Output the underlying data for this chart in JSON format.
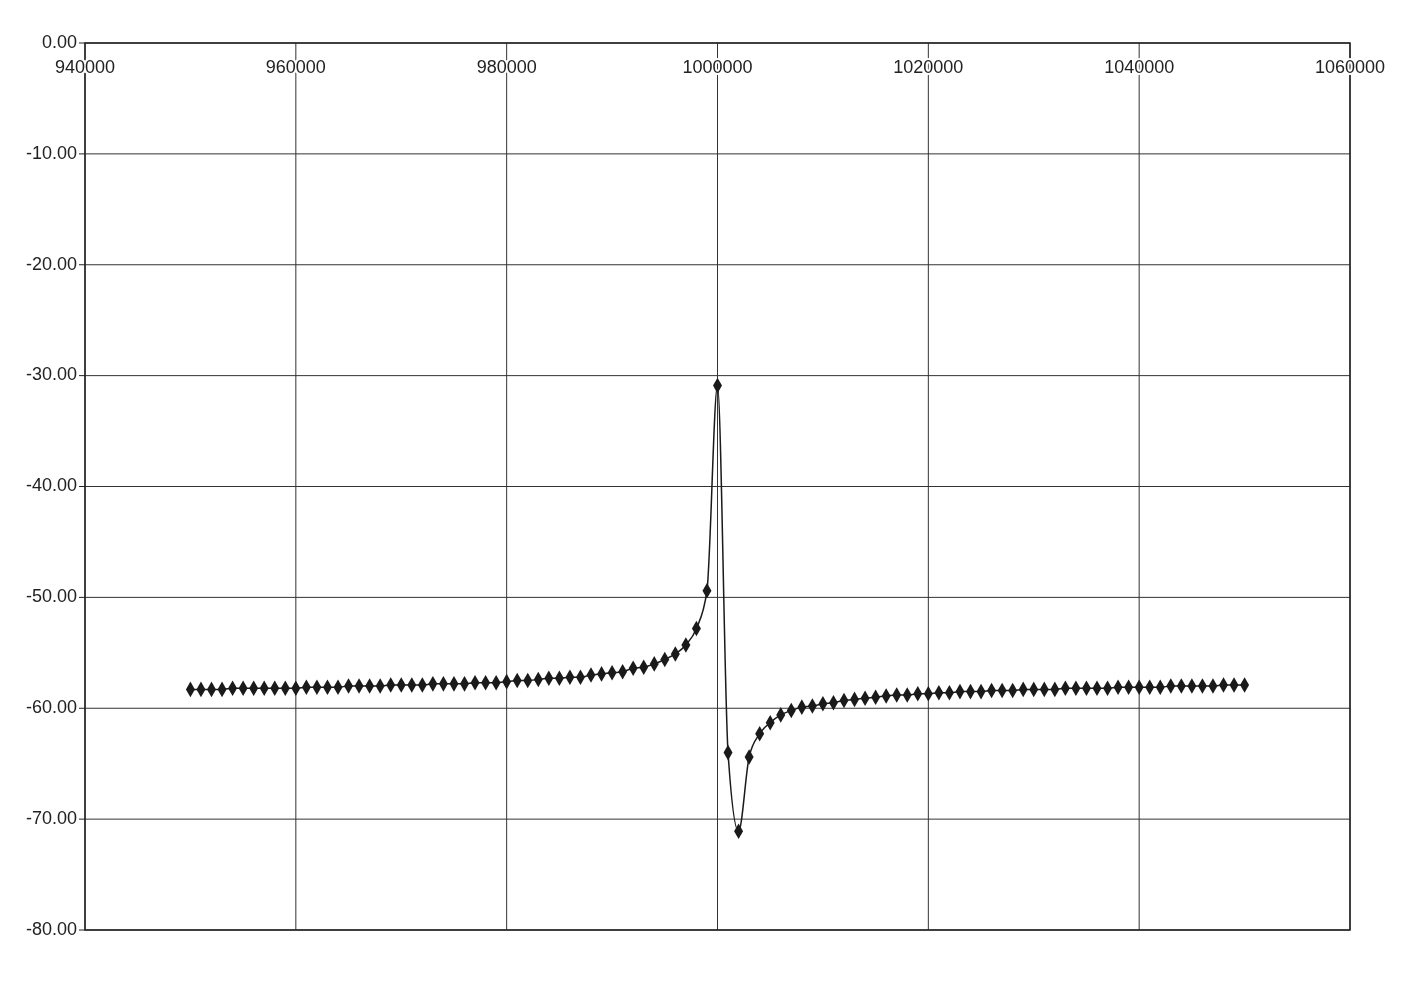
{
  "chart_data": {
    "type": "line",
    "x": [
      950000,
      951000,
      952000,
      953000,
      954000,
      955000,
      956000,
      957000,
      958000,
      959000,
      960000,
      961000,
      962000,
      963000,
      964000,
      965000,
      966000,
      967000,
      968000,
      969000,
      970000,
      971000,
      972000,
      973000,
      974000,
      975000,
      976000,
      977000,
      978000,
      979000,
      980000,
      981000,
      982000,
      983000,
      984000,
      985000,
      986000,
      987000,
      988000,
      989000,
      990000,
      991000,
      992000,
      993000,
      994000,
      995000,
      996000,
      997000,
      998000,
      999000,
      1000000,
      1001000,
      1002000,
      1003000,
      1004000,
      1005000,
      1006000,
      1007000,
      1008000,
      1009000,
      1010000,
      1011000,
      1012000,
      1013000,
      1014000,
      1015000,
      1016000,
      1017000,
      1018000,
      1019000,
      1020000,
      1021000,
      1022000,
      1023000,
      1024000,
      1025000,
      1026000,
      1027000,
      1028000,
      1029000,
      1030000,
      1031000,
      1032000,
      1033000,
      1034000,
      1035000,
      1036000,
      1037000,
      1038000,
      1039000,
      1040000,
      1041000,
      1042000,
      1043000,
      1044000,
      1045000,
      1046000,
      1047000,
      1048000,
      1049000,
      1050000
    ],
    "series": [
      {
        "color": "#1a1a1a",
        "values": [
          -58.3,
          -58.3,
          -58.3,
          -58.3,
          -58.2,
          -58.2,
          -58.2,
          -58.2,
          -58.2,
          -58.2,
          -58.2,
          -58.1,
          -58.1,
          -58.1,
          -58.1,
          -58.0,
          -58.0,
          -58.0,
          -58.0,
          -57.9,
          -57.9,
          -57.9,
          -57.9,
          -57.8,
          -57.8,
          -57.8,
          -57.8,
          -57.7,
          -57.7,
          -57.7,
          -57.6,
          -57.5,
          -57.5,
          -57.4,
          -57.3,
          -57.3,
          -57.2,
          -57.2,
          -57.0,
          -56.9,
          -56.8,
          -56.7,
          -56.4,
          -56.3,
          -56.0,
          -55.6,
          -55.1,
          -54.3,
          -52.8,
          -49.4,
          -30.9,
          -64.0,
          -71.1,
          -64.4,
          -62.3,
          -61.3,
          -60.6,
          -60.2,
          -59.9,
          -59.8,
          -59.6,
          -59.5,
          -59.3,
          -59.2,
          -59.1,
          -59.0,
          -58.9,
          -58.8,
          -58.8,
          -58.7,
          -58.7,
          -58.6,
          -58.6,
          -58.5,
          -58.5,
          -58.5,
          -58.4,
          -58.4,
          -58.4,
          -58.3,
          -58.3,
          -58.3,
          -58.3,
          -58.2,
          -58.2,
          -58.2,
          -58.2,
          -58.2,
          -58.1,
          -58.1,
          -58.1,
          -58.1,
          -58.1,
          -58.0,
          -58.0,
          -58.0,
          -58.0,
          -58.0,
          -57.9,
          -57.9,
          -57.9
        ]
      }
    ],
    "xlim": [
      940000,
      1060000
    ],
    "xticks": [
      940000,
      960000,
      980000,
      1000000,
      1020000,
      1040000,
      1060000
    ],
    "ylim": [
      -80,
      0
    ],
    "yticks": [
      {
        "value": 0,
        "label": "0.00"
      },
      {
        "value": -10,
        "label": "-10.00"
      },
      {
        "value": -20,
        "label": "-20.00"
      },
      {
        "value": -30,
        "label": "-30.00"
      },
      {
        "value": -40,
        "label": "-40.00"
      },
      {
        "value": -50,
        "label": "-50.00"
      },
      {
        "value": -60,
        "label": "-60.00"
      },
      {
        "value": -70,
        "label": "-70.00"
      },
      {
        "value": -80,
        "label": "-80.00"
      }
    ],
    "grid": true,
    "marker": "diamond",
    "line_style": "solid"
  }
}
